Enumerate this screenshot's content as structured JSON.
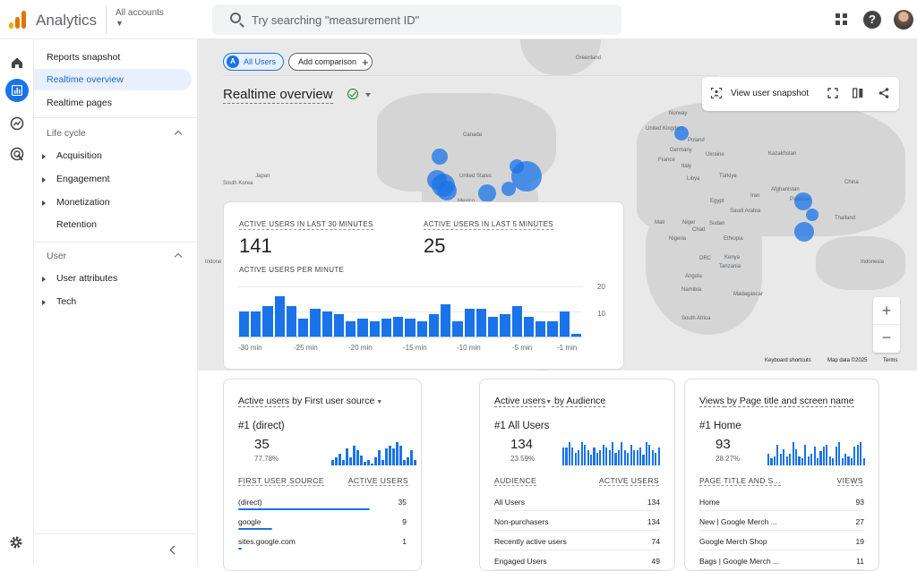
{
  "topbar": {
    "app_title": "Analytics",
    "account_label": "All accounts",
    "search_placeholder": "Try searching \"measurement ID\""
  },
  "sidebar": {
    "items": [
      {
        "label": "Reports snapshot"
      },
      {
        "label": "Realtime overview",
        "active": true
      },
      {
        "label": "Realtime pages"
      }
    ],
    "lifecycle": {
      "title": "Life cycle",
      "items": [
        "Acquisition",
        "Engagement",
        "Monetization",
        "Retention"
      ]
    },
    "user": {
      "title": "User",
      "items": [
        "User attributes",
        "Tech"
      ]
    }
  },
  "toolbar": {
    "segment_chip": "All Users",
    "segment_letter": "A",
    "add_comparison": "Add comparison",
    "page_title": "Realtime overview",
    "view_snapshot": "View user snapshot"
  },
  "map": {
    "labels": [
      "Greenland",
      "Canada",
      "United States",
      "Mexico",
      "Japan",
      "South Korea",
      "Norway",
      "United Kingdom",
      "Poland",
      "Germany",
      "Ukraine",
      "France",
      "Italy",
      "Türkiye",
      "Kazakhstan",
      "Libya",
      "Egypt",
      "Afghanistan",
      "Iran",
      "Pakistan",
      "Mali",
      "Niger",
      "Sudan",
      "Saudi Arabia",
      "Chad",
      "Thailand",
      "Nigeria",
      "Ethiopia",
      "DRC",
      "Kenya",
      "Tanzania",
      "Angola",
      "Namibia",
      "Madagascar",
      "South Africa",
      "Indonesia",
      "China",
      "Indone"
    ],
    "footer": [
      "Keyboard shortcuts",
      "Map data ©2025",
      "Terms"
    ]
  },
  "realtime": {
    "kpi1_label": "ACTIVE USERS IN LAST 30 MINUTES",
    "kpi1_value": "141",
    "kpi2_label": "ACTIVE USERS IN LAST 5 MINUTES",
    "kpi2_value": "25",
    "chart_label": "ACTIVE USERS PER MINUTE"
  },
  "chart_data": {
    "type": "bar",
    "ylim": [
      0,
      20
    ],
    "yticks": [
      "20",
      "10"
    ],
    "xticks": [
      "-30 min",
      "-25 min",
      "-20 min",
      "-15 min",
      "-10 min",
      "-5 min",
      "-1 min"
    ],
    "values": [
      10,
      10,
      12,
      16,
      12,
      7,
      11,
      10,
      9,
      6,
      7,
      6,
      7,
      8,
      7,
      6,
      9,
      13,
      6,
      11,
      11,
      8,
      9,
      12,
      8,
      6,
      6,
      10,
      1
    ],
    "colors": {
      "bar": "#1a73e8"
    }
  },
  "cards": [
    {
      "title_a": "Active users",
      "title_b": " by First user source",
      "rank": "#1  (direct)",
      "value": "35",
      "pct": "77.78%",
      "col1": "FIRST USER SOURCE",
      "col2": "ACTIVE USERS",
      "spark": [
        3,
        4,
        6,
        3,
        9,
        4,
        10,
        8,
        5,
        2,
        3,
        1,
        4,
        8,
        3,
        9,
        10,
        9,
        12,
        10,
        3,
        4,
        8,
        3
      ],
      "rows": [
        {
          "name": "(direct)",
          "value": "35",
          "frac": 0.78
        },
        {
          "name": "google",
          "value": "9",
          "frac": 0.2
        },
        {
          "name": "sites.google.com",
          "value": "1",
          "frac": 0.02
        }
      ]
    },
    {
      "title_a": "Active users",
      "title_b": " by Audience",
      "rank": "#1  All Users",
      "value": "134",
      "pct": "23.59%",
      "col1": "AUDIENCE",
      "col2": "ACTIVE USERS",
      "spark": [
        7,
        7,
        9,
        7,
        5,
        6,
        9,
        8,
        6,
        4,
        7,
        5,
        6,
        8,
        7,
        6,
        9,
        5,
        6,
        9,
        6,
        5,
        8,
        6,
        6,
        7,
        4,
        9,
        8,
        6,
        5,
        7
      ],
      "rows": [
        {
          "name": "All Users",
          "value": "134"
        },
        {
          "name": "Non-purchasers",
          "value": "134"
        },
        {
          "name": "Recently active users",
          "value": "74"
        },
        {
          "name": "Engaged Users",
          "value": "49"
        }
      ]
    },
    {
      "title_a": "Views",
      "title_b": " by Page title and screen name",
      "rank": "#1  Home",
      "value": "93",
      "pct": "28.27%",
      "col1": "PAGE TITLE AND S...",
      "col2": "VIEWS",
      "spark": [
        5,
        3,
        4,
        9,
        5,
        7,
        4,
        5,
        10,
        7,
        4,
        3,
        9,
        4,
        5,
        8,
        3,
        6,
        8,
        9,
        4,
        3,
        8,
        10,
        3,
        5,
        4,
        3,
        8,
        9,
        10,
        3
      ],
      "rows": [
        {
          "name": "Home",
          "value": "93"
        },
        {
          "name": "New | Google Merch ...",
          "value": "27"
        },
        {
          "name": "Google Merch Shop",
          "value": "19"
        },
        {
          "name": "Bags | Google Merch ...",
          "value": "11"
        }
      ]
    }
  ]
}
